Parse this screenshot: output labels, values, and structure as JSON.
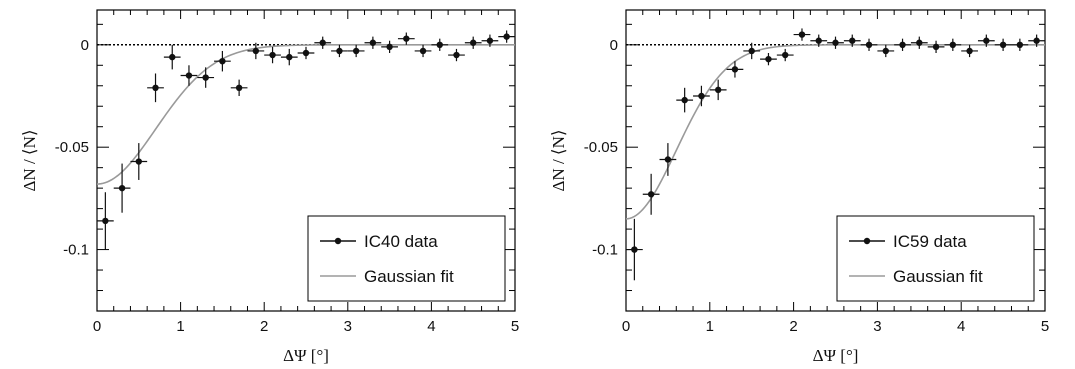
{
  "chart_data": [
    {
      "type": "scatter",
      "xlabel": "ΔΨ [°]",
      "ylabel": "ΔN / ⟨N⟩",
      "xlim": [
        0,
        5
      ],
      "ylim": [
        -0.13,
        0.017
      ],
      "xticks": [
        "0",
        "1",
        "2",
        "3",
        "4",
        "5"
      ],
      "yticks": [
        "0",
        "-0.05",
        "-0.1"
      ],
      "legend_position": "bottom-right",
      "reference_line": 0,
      "series": [
        {
          "name": "IC40 data",
          "style": "points-with-errors",
          "x": [
            0.1,
            0.3,
            0.5,
            0.7,
            0.9,
            1.1,
            1.3,
            1.5,
            1.7,
            1.9,
            2.1,
            2.3,
            2.5,
            2.7,
            2.9,
            3.1,
            3.3,
            3.5,
            3.7,
            3.9,
            4.1,
            4.3,
            4.5,
            4.7,
            4.9
          ],
          "y": [
            -0.086,
            -0.07,
            -0.057,
            -0.021,
            -0.006,
            -0.015,
            -0.016,
            -0.008,
            -0.021,
            -0.003,
            -0.005,
            -0.006,
            -0.004,
            0.001,
            -0.003,
            -0.003,
            0.001,
            -0.001,
            0.003,
            -0.003,
            0.0,
            -0.005,
            0.001,
            0.002,
            0.004
          ],
          "yerr": [
            0.014,
            0.012,
            0.009,
            0.007,
            0.006,
            0.005,
            0.005,
            0.005,
            0.004,
            0.004,
            0.004,
            0.004,
            0.003,
            0.003,
            0.003,
            0.003,
            0.003,
            0.003,
            0.003,
            0.003,
            0.003,
            0.003,
            0.003,
            0.003,
            0.003
          ]
        },
        {
          "name": "Gaussian fit",
          "style": "line",
          "amplitude": -0.068,
          "sigma": 0.7
        }
      ]
    },
    {
      "type": "scatter",
      "xlabel": "ΔΨ [°]",
      "ylabel": "ΔN / ⟨N⟩",
      "xlim": [
        0,
        5
      ],
      "ylim": [
        -0.13,
        0.017
      ],
      "xticks": [
        "0",
        "1",
        "2",
        "3",
        "4",
        "5"
      ],
      "yticks": [
        "0",
        "-0.05",
        "-0.1"
      ],
      "legend_position": "bottom-right",
      "reference_line": 0,
      "series": [
        {
          "name": "IC59 data",
          "style": "points-with-errors",
          "x": [
            0.1,
            0.3,
            0.5,
            0.7,
            0.9,
            1.1,
            1.3,
            1.5,
            1.7,
            1.9,
            2.1,
            2.3,
            2.5,
            2.7,
            2.9,
            3.1,
            3.3,
            3.5,
            3.7,
            3.9,
            4.1,
            4.3,
            4.5,
            4.7,
            4.9
          ],
          "y": [
            -0.1,
            -0.073,
            -0.056,
            -0.027,
            -0.025,
            -0.022,
            -0.012,
            -0.003,
            -0.007,
            -0.005,
            0.005,
            0.002,
            0.001,
            0.002,
            0.0,
            -0.003,
            0.0,
            0.001,
            -0.001,
            0.0,
            -0.003,
            0.002,
            0.0,
            0.0,
            0.002
          ],
          "yerr": [
            0.015,
            0.01,
            0.008,
            0.006,
            0.005,
            0.005,
            0.004,
            0.004,
            0.003,
            0.003,
            0.003,
            0.003,
            0.003,
            0.003,
            0.003,
            0.003,
            0.003,
            0.003,
            0.003,
            0.003,
            0.003,
            0.003,
            0.003,
            0.003,
            0.003
          ]
        },
        {
          "name": "Gaussian fit",
          "style": "line",
          "amplitude": -0.085,
          "sigma": 0.6
        }
      ]
    }
  ]
}
